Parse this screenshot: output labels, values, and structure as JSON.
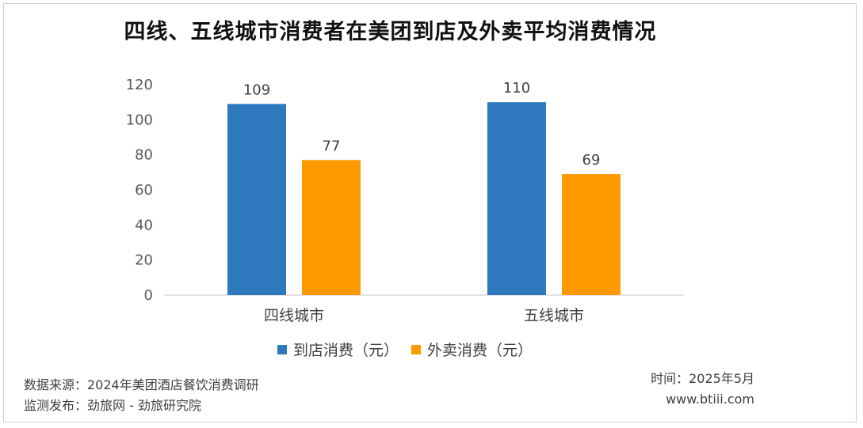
{
  "title": "四线、五线城市消费者在美团到店及外卖平均消费情况",
  "chart_data": {
    "type": "bar",
    "categories": [
      "四线城市",
      "五线城市"
    ],
    "series": [
      {
        "name": "到店消费（元）",
        "values": [
          109,
          110
        ],
        "color": "#2e78bd"
      },
      {
        "name": "外卖消费（元）",
        "values": [
          77,
          69
        ],
        "color": "#ff9900"
      }
    ],
    "ylim": [
      0,
      120
    ],
    "yticks": [
      0,
      20,
      40,
      60,
      80,
      100,
      120
    ],
    "ytick_labels": [
      "0",
      "20",
      "40",
      "60",
      "80",
      "100",
      "120"
    ],
    "data_labels": [
      [
        "109",
        "110"
      ],
      [
        "77",
        "69"
      ]
    ],
    "legend_position": "bottom",
    "grid": false
  },
  "footer": {
    "source": "数据来源：2024年美团酒店餐饮消费调研",
    "publisher": "监测发布：劲旅网 - 劲旅研究院",
    "date": "时间：2025年5月",
    "website": "www.btiii.com"
  }
}
